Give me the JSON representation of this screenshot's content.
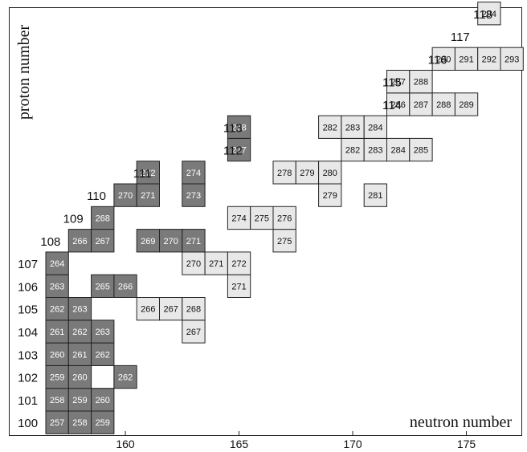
{
  "chart_data": {
    "type": "table",
    "title": "",
    "xlabel": "neutron number",
    "ylabel": "proton number",
    "x_ticks": [
      160,
      165,
      170,
      175
    ],
    "colors": {
      "dark": "#7a7a7a",
      "light": "#e8e8e8",
      "dark_text": "#ffffff",
      "light_text": "#111111",
      "border": "#222222"
    },
    "nuclides": [
      {
        "Z": 100,
        "A": 257,
        "shade": "dark"
      },
      {
        "Z": 100,
        "A": 258,
        "shade": "dark"
      },
      {
        "Z": 100,
        "A": 259,
        "shade": "dark"
      },
      {
        "Z": 101,
        "A": 258,
        "shade": "dark"
      },
      {
        "Z": 101,
        "A": 259,
        "shade": "dark"
      },
      {
        "Z": 101,
        "A": 260,
        "shade": "dark"
      },
      {
        "Z": 102,
        "A": 259,
        "shade": "dark"
      },
      {
        "Z": 102,
        "A": 260,
        "shade": "dark"
      },
      {
        "Z": 102,
        "A": 261,
        "shade": "white"
      },
      {
        "Z": 102,
        "A": 262,
        "shade": "dark"
      },
      {
        "Z": 103,
        "A": 260,
        "shade": "dark"
      },
      {
        "Z": 103,
        "A": 261,
        "shade": "dark"
      },
      {
        "Z": 103,
        "A": 262,
        "shade": "dark"
      },
      {
        "Z": 104,
        "A": 261,
        "shade": "dark"
      },
      {
        "Z": 104,
        "A": 262,
        "shade": "dark"
      },
      {
        "Z": 104,
        "A": 263,
        "shade": "dark"
      },
      {
        "Z": 104,
        "A": 267,
        "shade": "light"
      },
      {
        "Z": 105,
        "A": 262,
        "shade": "dark"
      },
      {
        "Z": 105,
        "A": 263,
        "shade": "dark"
      },
      {
        "Z": 105,
        "A": 266,
        "shade": "light"
      },
      {
        "Z": 105,
        "A": 267,
        "shade": "light"
      },
      {
        "Z": 105,
        "A": 268,
        "shade": "light"
      },
      {
        "Z": 106,
        "A": 263,
        "shade": "dark"
      },
      {
        "Z": 106,
        "A": 265,
        "shade": "dark"
      },
      {
        "Z": 106,
        "A": 266,
        "shade": "dark"
      },
      {
        "Z": 106,
        "A": 271,
        "shade": "light"
      },
      {
        "Z": 107,
        "A": 264,
        "shade": "dark"
      },
      {
        "Z": 107,
        "A": 270,
        "shade": "light"
      },
      {
        "Z": 107,
        "A": 271,
        "shade": "light"
      },
      {
        "Z": 107,
        "A": 272,
        "shade": "light"
      },
      {
        "Z": 108,
        "A": 266,
        "shade": "dark"
      },
      {
        "Z": 108,
        "A": 267,
        "shade": "dark"
      },
      {
        "Z": 108,
        "A": 269,
        "shade": "dark"
      },
      {
        "Z": 108,
        "A": 270,
        "shade": "dark"
      },
      {
        "Z": 108,
        "A": 271,
        "shade": "dark"
      },
      {
        "Z": 108,
        "A": 275,
        "shade": "light"
      },
      {
        "Z": 109,
        "A": 268,
        "shade": "dark"
      },
      {
        "Z": 109,
        "A": 274,
        "shade": "light"
      },
      {
        "Z": 109,
        "A": 275,
        "shade": "light"
      },
      {
        "Z": 109,
        "A": 276,
        "shade": "light"
      },
      {
        "Z": 110,
        "A": 270,
        "shade": "dark"
      },
      {
        "Z": 110,
        "A": 271,
        "shade": "dark"
      },
      {
        "Z": 110,
        "A": 273,
        "shade": "dark"
      },
      {
        "Z": 110,
        "A": 279,
        "shade": "light"
      },
      {
        "Z": 110,
        "A": 281,
        "shade": "light"
      },
      {
        "Z": 111,
        "A": 272,
        "shade": "dark"
      },
      {
        "Z": 111,
        "A": 274,
        "shade": "dark"
      },
      {
        "Z": 111,
        "A": 278,
        "shade": "light"
      },
      {
        "Z": 111,
        "A": 279,
        "shade": "light"
      },
      {
        "Z": 111,
        "A": 280,
        "shade": "light"
      },
      {
        "Z": 112,
        "A": 277,
        "shade": "dark"
      },
      {
        "Z": 112,
        "A": 282,
        "shade": "light"
      },
      {
        "Z": 112,
        "A": 283,
        "shade": "light"
      },
      {
        "Z": 112,
        "A": 284,
        "shade": "light"
      },
      {
        "Z": 112,
        "A": 285,
        "shade": "light"
      },
      {
        "Z": 113,
        "A": 278,
        "shade": "dark"
      },
      {
        "Z": 113,
        "A": 282,
        "shade": "light"
      },
      {
        "Z": 113,
        "A": 283,
        "shade": "light"
      },
      {
        "Z": 113,
        "A": 284,
        "shade": "light"
      },
      {
        "Z": 114,
        "A": 286,
        "shade": "light"
      },
      {
        "Z": 114,
        "A": 287,
        "shade": "light"
      },
      {
        "Z": 114,
        "A": 288,
        "shade": "light"
      },
      {
        "Z": 114,
        "A": 289,
        "shade": "light"
      },
      {
        "Z": 115,
        "A": 287,
        "shade": "light"
      },
      {
        "Z": 115,
        "A": 288,
        "shade": "light"
      },
      {
        "Z": 116,
        "A": 290,
        "shade": "light"
      },
      {
        "Z": 116,
        "A": 291,
        "shade": "light"
      },
      {
        "Z": 116,
        "A": 292,
        "shade": "light"
      },
      {
        "Z": 116,
        "A": 293,
        "shade": "light"
      },
      {
        "Z": 118,
        "A": 294,
        "shade": "light"
      }
    ],
    "proton_labels": [
      {
        "Z": 100,
        "text": "100",
        "N": 155.65
      },
      {
        "Z": 101,
        "text": "101",
        "N": 155.65
      },
      {
        "Z": 102,
        "text": "102",
        "N": 155.65
      },
      {
        "Z": 103,
        "text": "103",
        "N": 155.65
      },
      {
        "Z": 104,
        "text": "104",
        "N": 155.65
      },
      {
        "Z": 105,
        "text": "105",
        "N": 155.65
      },
      {
        "Z": 106,
        "text": "106",
        "N": 155.65
      },
      {
        "Z": 107,
        "text": "107",
        "N": 155.65
      },
      {
        "Z": 108,
        "text": "108",
        "N": 156.65
      },
      {
        "Z": 109,
        "text": "109",
        "N": 157.65
      },
      {
        "Z": 110,
        "text": "110",
        "N": 158.65
      },
      {
        "Z": 111,
        "text": "111",
        "N": 160.65
      },
      {
        "Z": 112,
        "text": "112",
        "N": 164.65
      },
      {
        "Z": 113,
        "text": "113",
        "N": 164.65
      },
      {
        "Z": 114,
        "text": "114",
        "N": 171.65
      },
      {
        "Z": 115,
        "text": "115",
        "N": 171.65
      },
      {
        "Z": 116,
        "text": "116",
        "N": 173.65
      },
      {
        "Z": 117,
        "text": "117",
        "N": 174.65
      },
      {
        "Z": 118,
        "text": "118",
        "N": 175.65
      }
    ]
  }
}
